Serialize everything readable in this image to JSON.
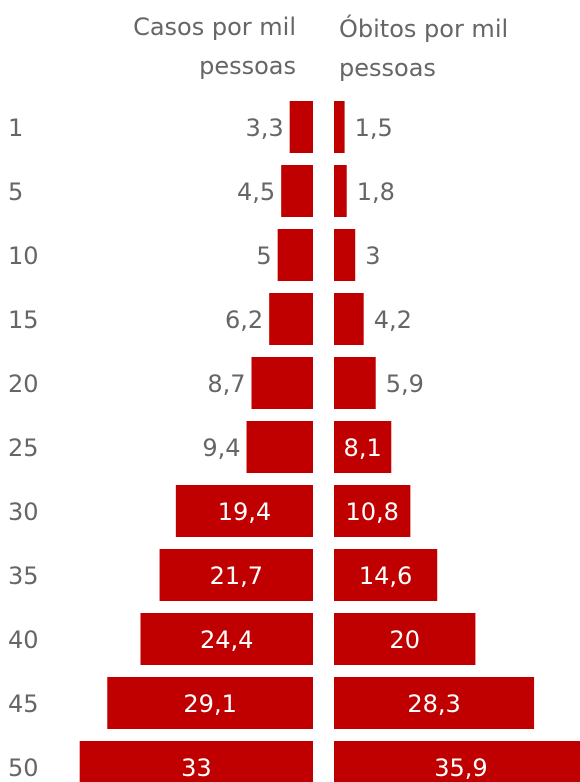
{
  "chart_data": {
    "type": "bar",
    "orientation": "horizontal",
    "layout": "butterfly",
    "categories": [
      "1",
      "5",
      "10",
      "15",
      "20",
      "25",
      "30",
      "35",
      "40",
      "45",
      "50"
    ],
    "series": [
      {
        "name": "Casos por mil pessoas",
        "side": "left",
        "values": [
          3.3,
          4.5,
          5,
          6.2,
          8.7,
          9.4,
          19.4,
          21.7,
          24.4,
          29.1,
          33
        ],
        "labels": [
          "3,3",
          "4,5",
          "5",
          "6,2",
          "8,7",
          "9,4",
          "19,4",
          "21,7",
          "24,4",
          "29,1",
          "33"
        ]
      },
      {
        "name": "Óbitos por mil pessoas",
        "side": "right",
        "values": [
          1.5,
          1.8,
          3,
          4.2,
          5.9,
          8.1,
          10.8,
          14.6,
          20,
          28.3,
          35.9
        ],
        "labels": [
          "1,5",
          "1,8",
          "3",
          "4,2",
          "5,9",
          "8,1",
          "10,8",
          "14,6",
          "20",
          "28,3",
          "35,9"
        ]
      }
    ],
    "headers": {
      "left": [
        "Casos por mil",
        "pessoas"
      ],
      "right": [
        "Óbitos por mil",
        "pessoas"
      ]
    },
    "grid": false,
    "legend": "none"
  },
  "colors": {
    "bar": "#c00000",
    "text": "#666666",
    "label_on_bar": "#ffffff"
  }
}
